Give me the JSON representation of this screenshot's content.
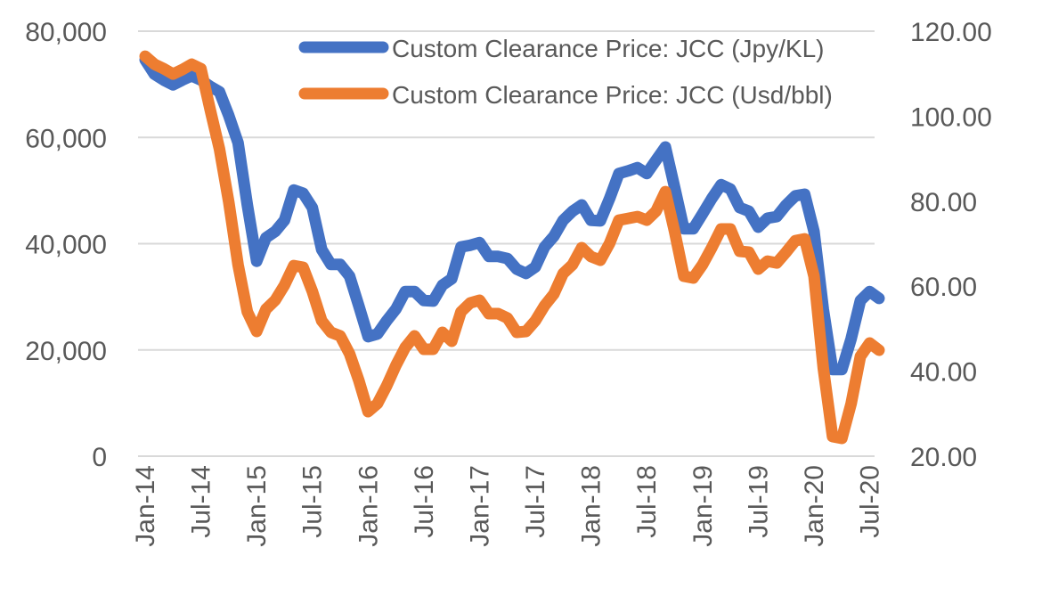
{
  "chart_data": {
    "type": "line",
    "title": "",
    "xlabel": "",
    "ylabel_left": "",
    "ylabel_right": "",
    "x_tick_labels": [
      "Jan-14",
      "Jul-14",
      "Jan-15",
      "Jul-15",
      "Jan-16",
      "Jul-16",
      "Jan-17",
      "Jul-17",
      "Jan-18",
      "Jul-18",
      "Jan-19",
      "Jul-19",
      "Jan-20",
      "Jul-20"
    ],
    "left_axis": {
      "min": 0,
      "max": 80000,
      "step": 20000,
      "tick_labels": [
        "0",
        "20,000",
        "40,000",
        "60,000",
        "80,000"
      ]
    },
    "right_axis": {
      "min": 20,
      "max": 120,
      "step": 20,
      "tick_labels": [
        "20.00",
        "40.00",
        "60.00",
        "80.00",
        "100.00",
        "120.00"
      ]
    },
    "grid": true,
    "legend_placement": "top-right",
    "start_month": "Jan-14",
    "series": [
      {
        "name": "Custom Clearance Price: JCC (Jpy/KL)",
        "axis": "left",
        "color": "#4472C4",
        "values": [
          74600,
          71900,
          70800,
          69900,
          70800,
          71600,
          70800,
          69600,
          68600,
          64100,
          59000,
          47300,
          36700,
          41100,
          42300,
          44400,
          50100,
          49500,
          46800,
          38900,
          36100,
          36100,
          33900,
          28300,
          22500,
          23000,
          25500,
          27700,
          31000,
          31000,
          29300,
          29200,
          32200,
          33400,
          39400,
          39700,
          40200,
          37600,
          37600,
          37200,
          35200,
          34400,
          35600,
          39400,
          41400,
          44400,
          46100,
          47300,
          44400,
          44300,
          48500,
          53200,
          53700,
          54300,
          53200,
          55700,
          58200,
          50600,
          42800,
          42800,
          45600,
          48500,
          51100,
          50300,
          46800,
          46100,
          43100,
          44800,
          45100,
          47300,
          49000,
          49300,
          42300,
          27700,
          16300,
          16300,
          22100,
          29300,
          31000,
          29700
        ]
      },
      {
        "name": "Custom Clearance Price: JCC (Usd/bbl)",
        "axis": "right",
        "color": "#ED7D31",
        "values": [
          114.11,
          112.22,
          111.18,
          109.92,
          110.97,
          112.22,
          111.18,
          101.53,
          92.31,
          79.74,
          65.06,
          53.96,
          49.34,
          54.58,
          56.68,
          60.24,
          64.85,
          64.44,
          58.78,
          51.86,
          49.13,
          48.3,
          44.1,
          37.82,
          30.48,
          32.37,
          36.56,
          41.38,
          45.57,
          48.3,
          45.15,
          45.15,
          49.13,
          47.04,
          53.96,
          56.05,
          56.68,
          53.54,
          53.54,
          52.49,
          49.13,
          49.34,
          51.86,
          55.42,
          58.15,
          62.97,
          65.06,
          69.05,
          66.95,
          66.11,
          70.09,
          75.54,
          75.96,
          76.38,
          75.54,
          77.64,
          82.25,
          72.82,
          62.34,
          61.92,
          65.06,
          69.05,
          73.45,
          73.45,
          68.21,
          68.0,
          64.02,
          65.9,
          65.48,
          68.0,
          70.72,
          71.14,
          62.34,
          40.75,
          24.61,
          24.19,
          32.37,
          43.48,
          46.62,
          44.94
        ]
      }
    ]
  }
}
